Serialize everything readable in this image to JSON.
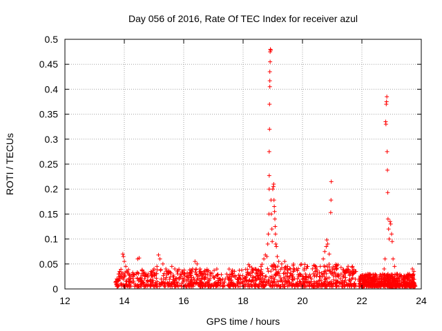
{
  "chart_data": {
    "type": "scatter",
    "title": "Day 056 of 2016, Rate Of TEC Index for receiver azul",
    "xlabel": "GPS time / hours",
    "ylabel": "ROTI / TECUs",
    "xlim": [
      12,
      24
    ],
    "ylim": [
      0,
      0.5
    ],
    "x_ticks": [
      12,
      14,
      16,
      18,
      20,
      22,
      24
    ],
    "x_tick_labels": [
      "12",
      "14",
      "16",
      "18",
      "20",
      "22",
      "24"
    ],
    "y_ticks": [
      0,
      0.05,
      0.1,
      0.15,
      0.2,
      0.25,
      0.3,
      0.35,
      0.4,
      0.45,
      0.5
    ],
    "y_tick_labels": [
      "0",
      "0.05",
      "0.1",
      "0.15",
      "0.2",
      "0.25",
      "0.3",
      "0.35",
      "0.4",
      "0.45",
      "0.5"
    ],
    "grid": true,
    "marker": "plus",
    "marker_color": "#ff0000",
    "series": [
      {
        "name": "ROTI",
        "points": [
          [
            13.75,
            0.02
          ],
          [
            13.82,
            0.025
          ],
          [
            13.9,
            0.03
          ],
          [
            13.95,
            0.07
          ],
          [
            13.97,
            0.065
          ],
          [
            14.0,
            0.055
          ],
          [
            14.05,
            0.045
          ],
          [
            14.1,
            0.035
          ],
          [
            14.15,
            0.03
          ],
          [
            14.2,
            0.02
          ],
          [
            14.3,
            0.025
          ],
          [
            14.4,
            0.03
          ],
          [
            14.45,
            0.06
          ],
          [
            14.5,
            0.062
          ],
          [
            14.6,
            0.03
          ],
          [
            14.7,
            0.025
          ],
          [
            14.8,
            0.03
          ],
          [
            14.9,
            0.035
          ],
          [
            15.0,
            0.04
          ],
          [
            15.1,
            0.045
          ],
          [
            15.15,
            0.068
          ],
          [
            15.2,
            0.06
          ],
          [
            15.3,
            0.05
          ],
          [
            15.4,
            0.04
          ],
          [
            15.5,
            0.035
          ],
          [
            15.6,
            0.045
          ],
          [
            15.7,
            0.04
          ],
          [
            15.8,
            0.03
          ],
          [
            15.9,
            0.025
          ],
          [
            16.0,
            0.02
          ],
          [
            16.1,
            0.025
          ],
          [
            16.2,
            0.03
          ],
          [
            16.3,
            0.04
          ],
          [
            16.38,
            0.055
          ],
          [
            16.45,
            0.05
          ],
          [
            16.55,
            0.04
          ],
          [
            16.65,
            0.03
          ],
          [
            16.8,
            0.035
          ],
          [
            16.9,
            0.03
          ],
          [
            17.0,
            0.025
          ],
          [
            17.2,
            0.02
          ],
          [
            17.4,
            0.02
          ],
          [
            17.6,
            0.018
          ],
          [
            17.8,
            0.02
          ],
          [
            18.0,
            0.02
          ],
          [
            18.2,
            0.03
          ],
          [
            18.3,
            0.035
          ],
          [
            18.4,
            0.04
          ],
          [
            18.6,
            0.045
          ],
          [
            18.7,
            0.06
          ],
          [
            18.75,
            0.068
          ],
          [
            18.8,
            0.065
          ],
          [
            18.83,
            0.09
          ],
          [
            18.85,
            0.11
          ],
          [
            18.87,
            0.15
          ],
          [
            18.88,
            0.2
          ],
          [
            18.88,
            0.227
          ],
          [
            18.88,
            0.275
          ],
          [
            18.89,
            0.32
          ],
          [
            18.89,
            0.37
          ],
          [
            18.9,
            0.405
          ],
          [
            18.9,
            0.417
          ],
          [
            18.9,
            0.435
          ],
          [
            18.91,
            0.455
          ],
          [
            18.91,
            0.475
          ],
          [
            18.92,
            0.48
          ],
          [
            18.93,
            0.478
          ],
          [
            18.94,
            0.178
          ],
          [
            18.95,
            0.15
          ],
          [
            18.97,
            0.12
          ],
          [
            18.98,
            0.095
          ],
          [
            19.0,
            0.2
          ],
          [
            19.02,
            0.205
          ],
          [
            19.03,
            0.21
          ],
          [
            19.04,
            0.178
          ],
          [
            19.05,
            0.165
          ],
          [
            19.06,
            0.155
          ],
          [
            19.07,
            0.14
          ],
          [
            19.08,
            0.125
          ],
          [
            19.09,
            0.11
          ],
          [
            19.1,
            0.09
          ],
          [
            19.12,
            0.085
          ],
          [
            19.15,
            0.065
          ],
          [
            19.2,
            0.055
          ],
          [
            19.3,
            0.05
          ],
          [
            19.4,
            0.055
          ],
          [
            19.5,
            0.045
          ],
          [
            19.6,
            0.04
          ],
          [
            19.7,
            0.035
          ],
          [
            19.8,
            0.04
          ],
          [
            19.9,
            0.03
          ],
          [
            20.0,
            0.025
          ],
          [
            20.1,
            0.03
          ],
          [
            20.2,
            0.025
          ],
          [
            20.3,
            0.02
          ],
          [
            20.4,
            0.025
          ],
          [
            20.5,
            0.03
          ],
          [
            20.6,
            0.045
          ],
          [
            20.7,
            0.06
          ],
          [
            20.75,
            0.075
          ],
          [
            20.8,
            0.085
          ],
          [
            20.82,
            0.098
          ],
          [
            20.85,
            0.09
          ],
          [
            20.9,
            0.07
          ],
          [
            20.95,
            0.153
          ],
          [
            20.96,
            0.178
          ],
          [
            20.97,
            0.215
          ],
          [
            21.0,
            0.04
          ],
          [
            21.1,
            0.03
          ],
          [
            21.2,
            0.025
          ],
          [
            21.3,
            0.03
          ],
          [
            21.4,
            0.035
          ],
          [
            21.5,
            0.04
          ],
          [
            21.6,
            0.035
          ],
          [
            21.7,
            0.03
          ],
          [
            21.8,
            0.035
          ],
          [
            22.0,
            0.02
          ],
          [
            22.1,
            0.025
          ],
          [
            22.2,
            0.03
          ],
          [
            22.3,
            0.02
          ],
          [
            22.4,
            0.015
          ],
          [
            22.5,
            0.02
          ],
          [
            22.6,
            0.025
          ],
          [
            22.7,
            0.03
          ],
          [
            22.75,
            0.04
          ],
          [
            22.78,
            0.06
          ],
          [
            22.8,
            0.335
          ],
          [
            22.81,
            0.33
          ],
          [
            22.82,
            0.37
          ],
          [
            22.83,
            0.375
          ],
          [
            22.84,
            0.385
          ],
          [
            22.85,
            0.275
          ],
          [
            22.86,
            0.238
          ],
          [
            22.87,
            0.193
          ],
          [
            22.88,
            0.14
          ],
          [
            22.9,
            0.12
          ],
          [
            22.92,
            0.1
          ],
          [
            22.95,
            0.135
          ],
          [
            22.97,
            0.13
          ],
          [
            23.0,
            0.11
          ],
          [
            23.02,
            0.095
          ],
          [
            23.05,
            0.06
          ],
          [
            23.1,
            0.045
          ],
          [
            23.2,
            0.03
          ],
          [
            23.3,
            0.025
          ],
          [
            23.4,
            0.02
          ],
          [
            23.5,
            0.025
          ],
          [
            23.6,
            0.03
          ],
          [
            23.7,
            0.04
          ],
          [
            23.75,
            0.035
          ]
        ],
        "baseline_band": {
          "note": "dense near-baseline scatter",
          "segments": [
            {
              "x": [
                13.7,
                18.0
              ],
              "y": [
                0.005,
                0.04
              ]
            },
            {
              "x": [
                18.0,
                21.8
              ],
              "y": [
                0.005,
                0.05
              ]
            },
            {
              "x": [
                21.9,
                23.8
              ],
              "y": [
                0.005,
                0.03
              ]
            }
          ],
          "count": 1600
        }
      }
    ]
  }
}
